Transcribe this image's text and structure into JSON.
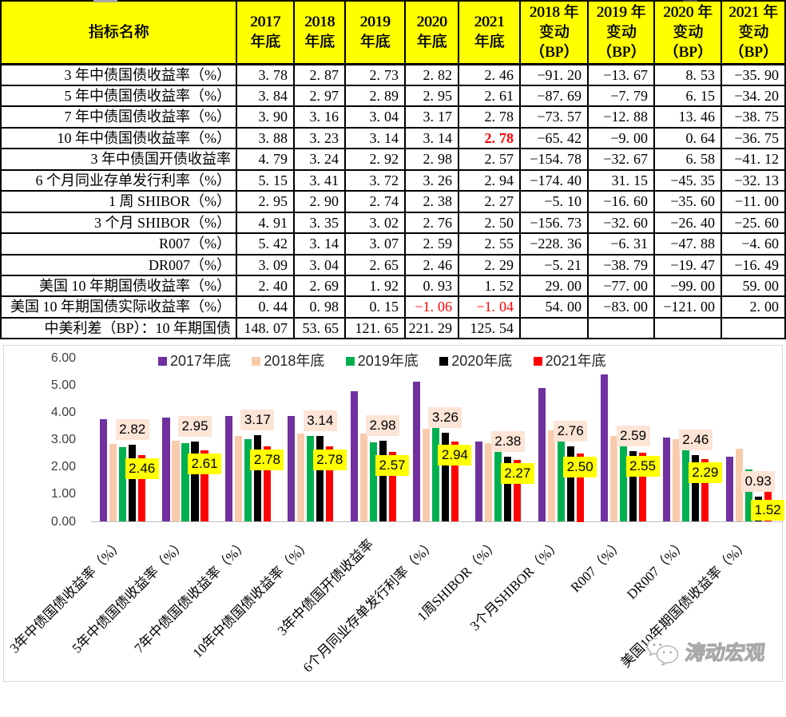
{
  "table": {
    "header": {
      "indicator": "指标名称",
      "year_cols": [
        "2017\n年底",
        "2018\n年底",
        "2019\n年底",
        "2020\n年底",
        "2021\n年底"
      ],
      "change_cols": [
        "2018 年\n变动\n（BP）",
        "2019 年\n变动\n（BP）",
        "2020 年\n变动\n（BP）",
        "2021 年\n变动\n（BP）"
      ]
    },
    "rows": [
      {
        "name": "3 年中债国债收益率（%）",
        "values": [
          "3.78",
          "2.87",
          "2.73",
          "2.82",
          "2.46",
          "-91.20",
          "-13.67",
          "8.53",
          "-35.90"
        ]
      },
      {
        "name": "5 年中债国债收益率（%）",
        "values": [
          "3.84",
          "2.97",
          "2.89",
          "2.95",
          "2.61",
          "-87.69",
          "-7.79",
          "6.15",
          "-34.20"
        ]
      },
      {
        "name": "7 年中债国债收益率（%）",
        "values": [
          "3.90",
          "3.16",
          "3.04",
          "3.17",
          "2.78",
          "-73.57",
          "-12.88",
          "13.46",
          "-38.75"
        ]
      },
      {
        "name": "10 年中债国债收益率（%）",
        "values": [
          "3.88",
          "3.23",
          "3.14",
          "3.14",
          "2.78",
          "-65.42",
          "-9.00",
          "0.64",
          "-36.75"
        ],
        "highlight": {
          "cols": [
            4
          ],
          "bold": true
        }
      },
      {
        "name": "3 年中债国开债收益率",
        "values": [
          "4.79",
          "3.24",
          "2.92",
          "2.98",
          "2.57",
          "-154.78",
          "-32.67",
          "6.58",
          "-41.12"
        ]
      },
      {
        "name": "6 个月同业存单发行利率（%）",
        "values": [
          "5.15",
          "3.41",
          "3.72",
          "3.26",
          "2.94",
          "-174.40",
          "31.15",
          "-45.35",
          "-32.13"
        ]
      },
      {
        "name": "1 周 SHIBOR（%）",
        "values": [
          "2.95",
          "2.90",
          "2.74",
          "2.38",
          "2.27",
          "-5.10",
          "-16.60",
          "-35.60",
          "-11.00"
        ]
      },
      {
        "name": "3 个月 SHIBOR（%）",
        "values": [
          "4.91",
          "3.35",
          "3.02",
          "2.76",
          "2.50",
          "-156.73",
          "-32.60",
          "-26.40",
          "-25.60"
        ]
      },
      {
        "name": "R007（%）",
        "values": [
          "5.42",
          "3.14",
          "3.07",
          "2.59",
          "2.55",
          "-228.36",
          "-6.31",
          "-47.88",
          "-4.60"
        ]
      },
      {
        "name": "DR007（%）",
        "values": [
          "3.09",
          "3.04",
          "2.65",
          "2.46",
          "2.29",
          "-5.21",
          "-38.79",
          "-19.47",
          "-16.49"
        ]
      },
      {
        "name": "美国 10 年期国债收益率（%）",
        "values": [
          "2.40",
          "2.69",
          "1.92",
          "0.93",
          "1.52",
          "29.00",
          "-77.00",
          "-99.00",
          "59.00"
        ]
      },
      {
        "name": "美国 10 年期国债实际收益率（%）",
        "values": [
          "0.44",
          "0.98",
          "0.15",
          "-1.06",
          "-1.04",
          "54.00",
          "-83.00",
          "-121.00",
          "2.00"
        ],
        "highlight": {
          "cols": [
            3,
            4
          ],
          "bold": false
        }
      },
      {
        "name": "中美利差（BP）：10 年期国债",
        "values": [
          "148.07",
          "53.65",
          "121.65",
          "221.29",
          "125.54",
          "",
          "",
          "",
          ""
        ]
      }
    ]
  },
  "chart_data": {
    "type": "bar",
    "title": "",
    "categories": [
      "3年中债国债收益率（%）",
      "5年中债国债收益率（%）",
      "7年中债国债收益率（%）",
      "10年中债国债收益率（%）",
      "3年中债国开债收益率",
      "6个月同业存单发行利率（%）",
      "1周SHIBOR（%）",
      "3个月SHIBOR（%）",
      "R007（%）",
      "DR007（%）",
      "美国10年期国债收益率（%）"
    ],
    "series": [
      {
        "name": "2017年底",
        "color": "#7030A0",
        "values": [
          3.78,
          3.84,
          3.9,
          3.88,
          4.79,
          5.15,
          2.95,
          4.91,
          5.42,
          3.09,
          2.4
        ]
      },
      {
        "name": "2018年底",
        "color": "#F8CBAD",
        "values": [
          2.87,
          2.97,
          3.16,
          3.23,
          3.24,
          3.41,
          2.9,
          3.35,
          3.14,
          3.04,
          2.69
        ]
      },
      {
        "name": "2019年底",
        "color": "#00B050",
        "values": [
          2.73,
          2.89,
          3.04,
          3.14,
          2.92,
          3.72,
          2.74,
          3.02,
          3.07,
          2.65,
          1.92
        ]
      },
      {
        "name": "2020年底",
        "color": "#000000",
        "values": [
          2.82,
          2.95,
          3.17,
          3.14,
          2.98,
          3.26,
          2.38,
          2.76,
          2.59,
          2.46,
          0.93
        ],
        "data_labels": {
          "shown": true,
          "background": "#FCE4D6",
          "position": "above-bar"
        }
      },
      {
        "name": "2021年底",
        "color": "#FF0000",
        "values": [
          2.46,
          2.61,
          2.78,
          2.78,
          2.57,
          2.94,
          2.27,
          2.5,
          2.55,
          2.29,
          1.52
        ],
        "data_labels": {
          "shown": true,
          "background": "#FFFF00",
          "position": "inside-top"
        }
      }
    ],
    "yticks": [
      "0.00",
      "1.00",
      "2.00",
      "3.00",
      "4.00",
      "5.00",
      "6.00"
    ],
    "ylim": [
      0,
      6
    ],
    "ytick_step": 1,
    "grid": false,
    "legend_position": "top",
    "xlabel_rotation": -45
  },
  "watermark": {
    "text": "涛动宏观",
    "icon": "wechat-icon",
    "color": "#9E9E9E"
  }
}
